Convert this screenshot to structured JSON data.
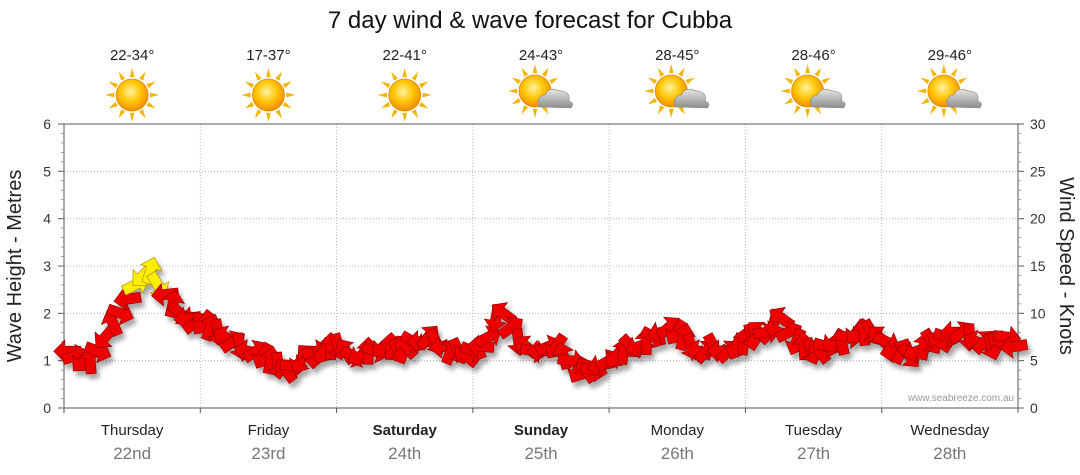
{
  "chart_data": {
    "type": "line",
    "title": "7 day wind & wave forecast for Cubba",
    "ylabel_left": "Wave Height - Metres",
    "ylabel_right": "Wind Speed - Knots",
    "ylim_left": [
      0,
      6
    ],
    "ylim_right": [
      0,
      30
    ],
    "yticks_left": [
      "0",
      "1",
      "2",
      "3",
      "4",
      "5",
      "6"
    ],
    "yticks_right": [
      "0",
      "5",
      "10",
      "15",
      "20",
      "25",
      "30"
    ],
    "grid": true,
    "watermark": "www.seabreeze.com.au",
    "days": [
      {
        "name": "Thursday",
        "date": "22nd",
        "temp": "22-34°",
        "weather": "sunny",
        "bold": false
      },
      {
        "name": "Friday",
        "date": "23rd",
        "temp": "17-37°",
        "weather": "sunny",
        "bold": false
      },
      {
        "name": "Saturday",
        "date": "24th",
        "temp": "22-41°",
        "weather": "sunny",
        "bold": true
      },
      {
        "name": "Sunday",
        "date": "25th",
        "temp": "24-43°",
        "weather": "partly-cloudy",
        "bold": true
      },
      {
        "name": "Monday",
        "date": "26th",
        "temp": "28-45°",
        "weather": "partly-cloudy",
        "bold": false
      },
      {
        "name": "Tuesday",
        "date": "27th",
        "temp": "28-46°",
        "weather": "partly-cloudy",
        "bold": false
      },
      {
        "name": "Wednesday",
        "date": "28th",
        "temp": "29-46°",
        "weather": "partly-cloudy",
        "bold": false
      }
    ],
    "series": [
      {
        "name": "Wind Speed",
        "axis": "right",
        "unit": "knots",
        "color": "#ee0000",
        "highlight_color": "#ffee00",
        "values": [
          6,
          5.5,
          5,
          5,
          6,
          7.5,
          9,
          10,
          11.5,
          13,
          14,
          14.5,
          13,
          12,
          11,
          10,
          9.5,
          9,
          9,
          8.5,
          8,
          7.5,
          7,
          6.5,
          6,
          6,
          5.5,
          5,
          4.5,
          4,
          4.5,
          5,
          5.5,
          6,
          6,
          6.5,
          6.5,
          6,
          5.5,
          5.5,
          6,
          6,
          6.5,
          6.5,
          6,
          6.5,
          7,
          7,
          7.5,
          7,
          6.5,
          6,
          6,
          5.5,
          6,
          6.5,
          7.5,
          9.5,
          10,
          8.5,
          7,
          6.5,
          6,
          6,
          6.5,
          6.5,
          5.5,
          5,
          4,
          4,
          4,
          4.5,
          5,
          5.5,
          6,
          6.5,
          6.5,
          7,
          7.5,
          8,
          8.5,
          8,
          7.5,
          6.5,
          6,
          6,
          6.5,
          6,
          6,
          6.5,
          7,
          7.5,
          8,
          8,
          9,
          9.5,
          8,
          7,
          6.5,
          6,
          6,
          6.5,
          7,
          7,
          7.5,
          8,
          8,
          8,
          7.5,
          7,
          6,
          6,
          5.5,
          6,
          6.5,
          7,
          7,
          7.5,
          8,
          8,
          7.5,
          7,
          7,
          6.5,
          7,
          7.5,
          6.5
        ]
      }
    ]
  }
}
